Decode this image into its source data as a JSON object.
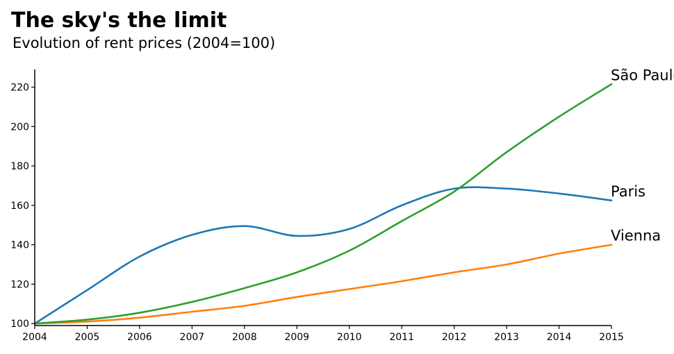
{
  "chart_data": {
    "type": "line",
    "title": "The sky's the limit",
    "subtitle": "Evolution of rent prices (2004=100)",
    "xlabel": "",
    "ylabel": "",
    "x": [
      2004,
      2005,
      2006,
      2007,
      2008,
      2009,
      2010,
      2011,
      2012,
      2013,
      2014,
      2015
    ],
    "xlim": [
      2004,
      2015
    ],
    "ylim": [
      99,
      229
    ],
    "yticks": [
      100,
      120,
      140,
      160,
      180,
      200,
      220
    ],
    "grid": false,
    "legend": "none (series labelled at line ends)",
    "series": [
      {
        "name": "Paris",
        "color": "#1f77b4",
        "values": [
          100,
          117,
          134,
          145,
          149.5,
          144.5,
          148,
          160,
          168.5,
          168.5,
          166,
          162.5
        ]
      },
      {
        "name": "Vienna",
        "color": "#ff7f0e",
        "values": [
          100,
          101,
          103,
          106,
          109,
          113.5,
          117.5,
          121.5,
          126,
          130,
          135.5,
          140
        ]
      },
      {
        "name": "São Paulo",
        "color": "#2ca02c",
        "values": [
          100,
          102,
          105.5,
          111,
          118,
          126,
          137,
          152,
          167,
          187,
          205,
          221.5
        ]
      }
    ]
  }
}
